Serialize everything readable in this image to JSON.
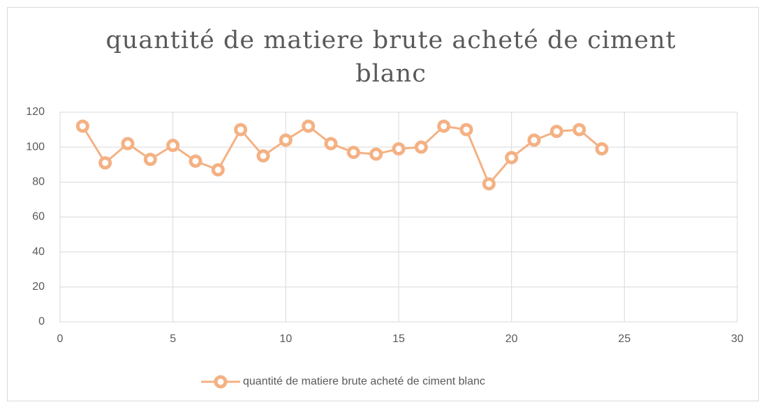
{
  "chart_data": {
    "type": "line",
    "title": "quantité de matiere brute acheté de ciment blanc",
    "x": [
      1,
      2,
      3,
      4,
      5,
      6,
      7,
      8,
      9,
      10,
      11,
      12,
      13,
      14,
      15,
      16,
      17,
      18,
      19,
      20,
      21,
      22,
      23,
      24
    ],
    "series": [
      {
        "name": "quantité de matiere brute acheté de ciment blanc",
        "color": "#f4b183",
        "values": [
          112,
          91,
          102,
          93,
          101,
          92,
          87,
          110,
          95,
          104,
          112,
          102,
          97,
          96,
          99,
          100,
          112,
          110,
          79,
          94,
          104,
          109,
          110,
          99
        ]
      }
    ],
    "xlim": [
      0,
      30
    ],
    "xticks": [
      0,
      5,
      10,
      15,
      20,
      25,
      30
    ],
    "ylim": [
      0,
      120
    ],
    "yticks": [
      0,
      20,
      40,
      60,
      80,
      100,
      120
    ],
    "grid": true,
    "legend": "bottom"
  }
}
